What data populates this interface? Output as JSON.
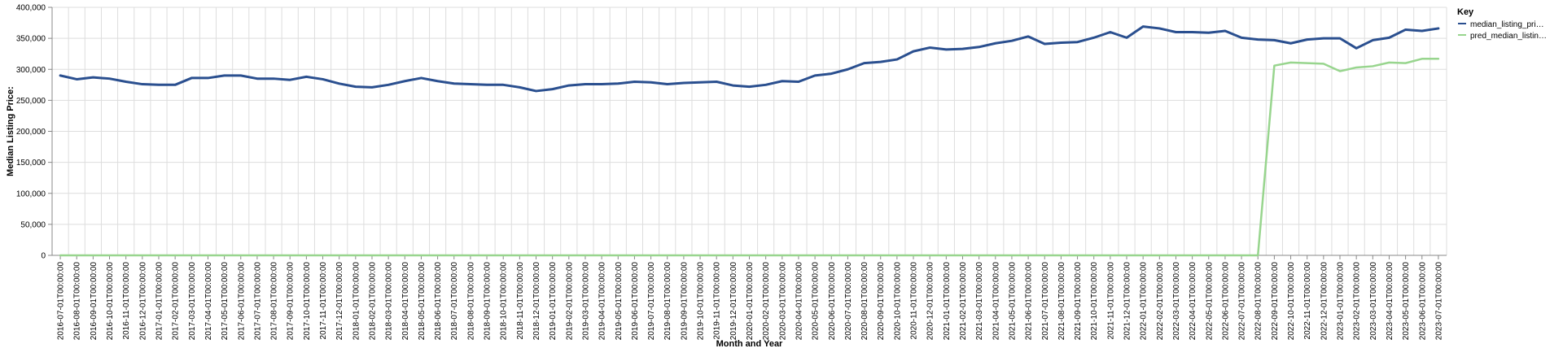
{
  "chart_data": {
    "type": "line",
    "xlabel": "Month and Year",
    "ylabel": "Median Listing Price:",
    "ylim": [
      0,
      400000
    ],
    "y_ticks": [
      0,
      50000,
      100000,
      150000,
      200000,
      250000,
      300000,
      350000,
      400000
    ],
    "y_tick_labels": [
      "0",
      "50,000",
      "100,000",
      "150,000",
      "200,000",
      "250,000",
      "300,000",
      "350,000",
      "400,000"
    ],
    "grid": true,
    "legend": {
      "title": "Key",
      "position": "right"
    },
    "x": [
      "2016-07-01T00:00:00",
      "2016-08-01T00:00:00",
      "2016-09-01T00:00:00",
      "2016-10-01T00:00:00",
      "2016-11-01T00:00:00",
      "2016-12-01T00:00:00",
      "2017-01-01T00:00:00",
      "2017-02-01T00:00:00",
      "2017-03-01T00:00:00",
      "2017-04-01T00:00:00",
      "2017-05-01T00:00:00",
      "2017-06-01T00:00:00",
      "2017-07-01T00:00:00",
      "2017-08-01T00:00:00",
      "2017-09-01T00:00:00",
      "2017-10-01T00:00:00",
      "2017-11-01T00:00:00",
      "2017-12-01T00:00:00",
      "2018-01-01T00:00:00",
      "2018-02-01T00:00:00",
      "2018-03-01T00:00:00",
      "2018-04-01T00:00:00",
      "2018-05-01T00:00:00",
      "2018-06-01T00:00:00",
      "2018-07-01T00:00:00",
      "2018-08-01T00:00:00",
      "2018-09-01T00:00:00",
      "2018-10-01T00:00:00",
      "2018-11-01T00:00:00",
      "2018-12-01T00:00:00",
      "2019-01-01T00:00:00",
      "2019-02-01T00:00:00",
      "2019-03-01T00:00:00",
      "2019-04-01T00:00:00",
      "2019-05-01T00:00:00",
      "2019-06-01T00:00:00",
      "2019-07-01T00:00:00",
      "2019-08-01T00:00:00",
      "2019-09-01T00:00:00",
      "2019-10-01T00:00:00",
      "2019-11-01T00:00:00",
      "2019-12-01T00:00:00",
      "2020-01-01T00:00:00",
      "2020-02-01T00:00:00",
      "2020-03-01T00:00:00",
      "2020-04-01T00:00:00",
      "2020-05-01T00:00:00",
      "2020-06-01T00:00:00",
      "2020-07-01T00:00:00",
      "2020-08-01T00:00:00",
      "2020-09-01T00:00:00",
      "2020-10-01T00:00:00",
      "2020-11-01T00:00:00",
      "2020-12-01T00:00:00",
      "2021-01-01T00:00:00",
      "2021-02-01T00:00:00",
      "2021-03-01T00:00:00",
      "2021-04-01T00:00:00",
      "2021-05-01T00:00:00",
      "2021-06-01T00:00:00",
      "2021-07-01T00:00:00",
      "2021-08-01T00:00:00",
      "2021-09-01T00:00:00",
      "2021-10-01T00:00:00",
      "2021-11-01T00:00:00",
      "2021-12-01T00:00:00",
      "2022-01-01T00:00:00",
      "2022-02-01T00:00:00",
      "2022-03-01T00:00:00",
      "2022-04-01T00:00:00",
      "2022-05-01T00:00:00",
      "2022-06-01T00:00:00",
      "2022-07-01T00:00:00",
      "2022-08-01T00:00:00",
      "2022-09-01T00:00:00",
      "2022-10-01T00:00:00",
      "2022-11-01T00:00:00",
      "2022-12-01T00:00:00",
      "2023-01-01T00:00:00",
      "2023-02-01T00:00:00",
      "2023-03-01T00:00:00",
      "2023-04-01T00:00:00",
      "2023-05-01T00:00:00",
      "2023-06-01T00:00:00",
      "2023-07-01T00:00:00"
    ],
    "series": [
      {
        "name": "median_listing_pri…",
        "color": "#2a4f8f",
        "values": [
          290000,
          284000,
          287000,
          285000,
          280000,
          276000,
          275000,
          275000,
          286000,
          286000,
          290000,
          290000,
          285000,
          285000,
          283000,
          288000,
          284000,
          277000,
          272000,
          271000,
          275000,
          281000,
          286000,
          281000,
          277000,
          276000,
          275000,
          275000,
          271000,
          265000,
          268000,
          274000,
          276000,
          276000,
          277000,
          280000,
          279000,
          276000,
          278000,
          279000,
          280000,
          274000,
          272000,
          275000,
          281000,
          280000,
          290000,
          293000,
          300000,
          310000,
          312000,
          316000,
          329000,
          335000,
          332000,
          333000,
          336000,
          342000,
          346000,
          353000,
          341000,
          343000,
          344000,
          351000,
          360000,
          351000,
          369000,
          366000,
          360000,
          360000,
          359000,
          362000,
          351000,
          348000,
          347000,
          342000,
          348000,
          350000,
          350000,
          334000,
          347000,
          351000,
          364000,
          362000,
          366000
        ]
      },
      {
        "name": "pred_median_listin…",
        "color": "#98d58e",
        "values": [
          0,
          0,
          0,
          0,
          0,
          0,
          0,
          0,
          0,
          0,
          0,
          0,
          0,
          0,
          0,
          0,
          0,
          0,
          0,
          0,
          0,
          0,
          0,
          0,
          0,
          0,
          0,
          0,
          0,
          0,
          0,
          0,
          0,
          0,
          0,
          0,
          0,
          0,
          0,
          0,
          0,
          0,
          0,
          0,
          0,
          0,
          0,
          0,
          0,
          0,
          0,
          0,
          0,
          0,
          0,
          0,
          0,
          0,
          0,
          0,
          0,
          0,
          0,
          0,
          0,
          0,
          0,
          0,
          0,
          0,
          0,
          0,
          0,
          0,
          306000,
          311000,
          310000,
          309000,
          297000,
          303000,
          305000,
          311000,
          310000,
          317000,
          317000
        ]
      }
    ]
  }
}
